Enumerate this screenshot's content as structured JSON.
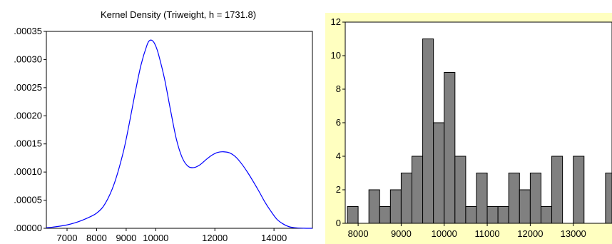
{
  "chart_data": [
    {
      "type": "line",
      "title": "Kernel Density (Triweight, h =  1731.8)",
      "xlabel": "",
      "ylabel": "",
      "x_ticks": [
        7000,
        8000,
        9000,
        10000,
        12000,
        14000
      ],
      "x_tick_labels": [
        "7000",
        "8000",
        "9000",
        "10000",
        "12000",
        "14000"
      ],
      "y_ticks": [
        0,
        5e-05,
        0.0001,
        0.00015,
        0.0002,
        0.00025,
        0.0003,
        0.00035
      ],
      "y_tick_labels": [
        ".00000",
        ".00005",
        ".00010",
        ".00015",
        ".00020",
        ".00025",
        ".00030",
        ".00035"
      ],
      "xlim": [
        6300,
        15300
      ],
      "ylim": [
        0,
        0.00035
      ],
      "series_color": "#0000ff",
      "x": [
        6300,
        6500,
        7000,
        7500,
        8000,
        8300,
        8600,
        8900,
        9100,
        9300,
        9500,
        9700,
        9800,
        9900,
        10000,
        10100,
        10300,
        10500,
        10700,
        10900,
        11100,
        11300,
        11500,
        11700,
        11900,
        12100,
        12300,
        12500,
        12700,
        12900,
        13100,
        13300,
        13500,
        13700,
        13900,
        14100,
        14300,
        14500,
        14700,
        15000,
        15300
      ],
      "y": [
        1e-06,
        2e-06,
        6e-06,
        1.4e-05,
        2.7e-05,
        4.5e-05,
        8e-05,
        0.000135,
        0.000185,
        0.00024,
        0.00029,
        0.000325,
        0.000334,
        0.000333,
        0.000324,
        0.000308,
        0.000265,
        0.00021,
        0.000158,
        0.000125,
        0.00011,
        0.000108,
        0.000113,
        0.000122,
        0.00013,
        0.000135,
        0.000136,
        0.000134,
        0.000127,
        0.000115,
        0.0001,
        8.3e-05,
        6.5e-05,
        4.6e-05,
        3e-05,
        1.6e-05,
        8e-06,
        3e-06,
        1e-06,
        2e-07,
        0.0
      ]
    },
    {
      "type": "bar",
      "title": "",
      "xlabel": "",
      "ylabel": "",
      "x_ticks": [
        8000,
        9000,
        10000,
        11000,
        12000,
        13000
      ],
      "x_tick_labels": [
        "8000",
        "9000",
        "10000",
        "11000",
        "12000",
        "13000"
      ],
      "y_ticks": [
        0,
        2,
        4,
        6,
        8,
        10,
        12
      ],
      "y_tick_labels": [
        "0",
        "2",
        "4",
        "6",
        "8",
        "10",
        "12"
      ],
      "xlim": [
        7700,
        13900
      ],
      "ylim": [
        0,
        12
      ],
      "bin_width": 250,
      "bin_starts": [
        7750,
        8000,
        8250,
        8500,
        8750,
        9000,
        9250,
        9500,
        9750,
        10000,
        10250,
        10500,
        10750,
        11000,
        11250,
        11500,
        11750,
        12000,
        12250,
        12500,
        12750,
        13000,
        13250,
        13500,
        13750
      ],
      "values": [
        1,
        0,
        2,
        1,
        2,
        3,
        4,
        11,
        6,
        9,
        4,
        1,
        3,
        1,
        1,
        3,
        2,
        3,
        1,
        4,
        0,
        4,
        0,
        0,
        3
      ],
      "bar_color": "#808080",
      "plot_background": "#ffffff",
      "frame_background": "#ffffc0"
    }
  ]
}
